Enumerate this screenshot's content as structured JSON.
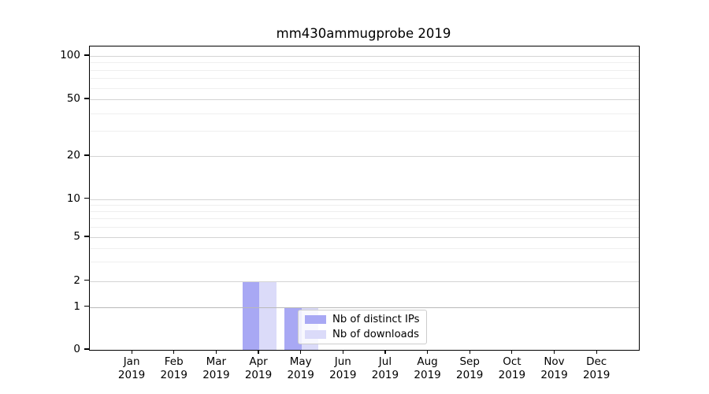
{
  "chart_data": {
    "type": "bar",
    "title": "mm430ammugprobe 2019",
    "year_label": "2019",
    "categories": [
      "Jan",
      "Feb",
      "Mar",
      "Apr",
      "May",
      "Jun",
      "Jul",
      "Aug",
      "Sep",
      "Oct",
      "Nov",
      "Dec"
    ],
    "series": [
      {
        "name": "Nb of distinct IPs",
        "color": "#a8a8f4",
        "values": [
          0,
          0,
          0,
          2,
          1,
          0,
          0,
          0,
          0,
          0,
          0,
          0
        ]
      },
      {
        "name": "Nb of downloads",
        "color": "#dbdbf9",
        "values": [
          0,
          0,
          0,
          2,
          1,
          0,
          0,
          0,
          0,
          0,
          0,
          0
        ]
      }
    ],
    "yscale": "symlog",
    "ylim": [
      0,
      115
    ],
    "y_major_ticks": [
      0,
      1,
      2,
      5,
      10,
      20,
      50,
      100
    ],
    "y_major_tick_labels": [
      "0",
      "1",
      "2",
      "5",
      "10",
      "20",
      "50",
      "100"
    ],
    "y_minor_ticks": [
      3,
      4,
      6,
      7,
      8,
      9,
      30,
      40,
      60,
      70,
      80,
      90
    ],
    "grid": "horizontal",
    "legend": {
      "position": "lower-center",
      "entries": [
        "Nb of distinct IPs",
        "Nb of downloads"
      ]
    },
    "colors": {
      "major_grid": "#d4d4d4",
      "emphasized_grid": "#b9b9b9",
      "minor_grid": "#efefef",
      "spine": "#000000",
      "text": "#000000",
      "legend_border": "#cccccc"
    }
  }
}
